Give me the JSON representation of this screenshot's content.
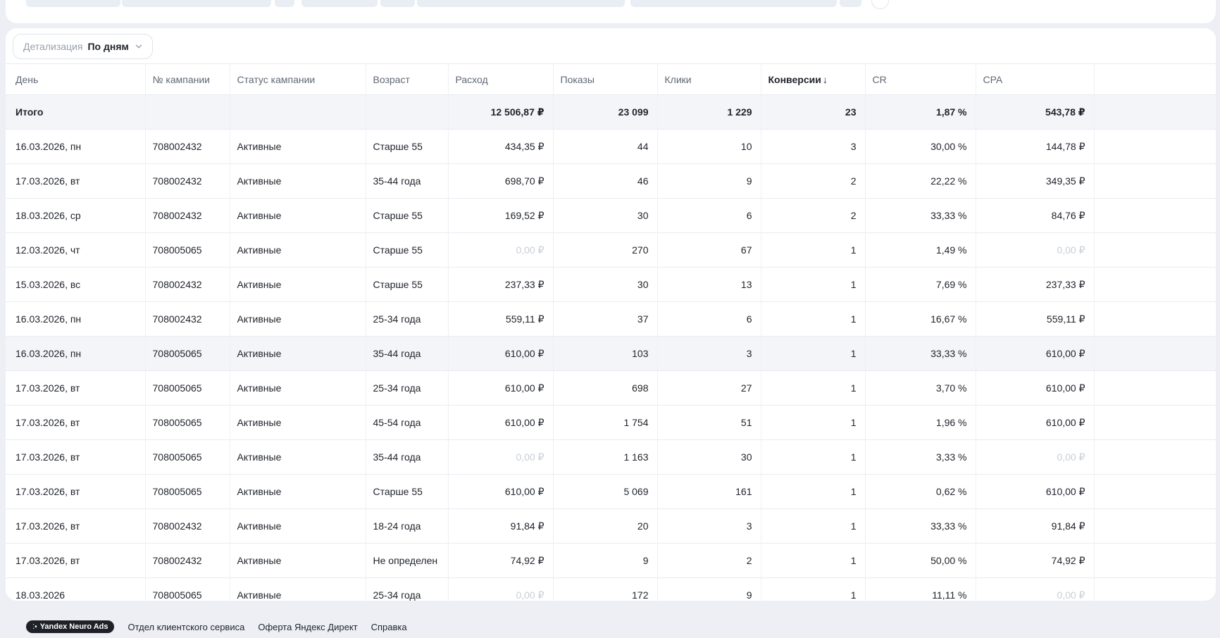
{
  "toolbar": {
    "detail_label": "Детализация",
    "detail_value": "По дням"
  },
  "table": {
    "sort_icon": "↓",
    "columns": [
      {
        "key": "day",
        "label": "День",
        "align": "left"
      },
      {
        "key": "campaign",
        "label": "№ кампании",
        "align": "left"
      },
      {
        "key": "status",
        "label": "Статус кампании",
        "align": "left"
      },
      {
        "key": "age",
        "label": "Возраст",
        "align": "left"
      },
      {
        "key": "spend",
        "label": "Расход",
        "align": "right"
      },
      {
        "key": "impressions",
        "label": "Показы",
        "align": "right"
      },
      {
        "key": "clicks",
        "label": "Клики",
        "align": "right"
      },
      {
        "key": "conversions",
        "label": "Конверсии",
        "align": "right",
        "sorted": true
      },
      {
        "key": "cr",
        "label": "CR",
        "align": "right"
      },
      {
        "key": "cpa",
        "label": "CPA",
        "align": "right"
      }
    ],
    "totals": {
      "day": "Итого",
      "campaign": "",
      "status": "",
      "age": "",
      "spend": "12 506,87 ₽",
      "impressions": "23 099",
      "clicks": "1 229",
      "conversions": "23",
      "cr": "1,87 %",
      "cpa": "543,78 ₽"
    },
    "rows": [
      {
        "day": "16.03.2026, пн",
        "campaign": "708002432",
        "status": "Активные",
        "age": "Старше 55",
        "spend": "434,35 ₽",
        "impressions": "44",
        "clicks": "10",
        "conversions": "3",
        "cr": "30,00 %",
        "cpa": "144,78 ₽"
      },
      {
        "day": "17.03.2026, вт",
        "campaign": "708002432",
        "status": "Активные",
        "age": "35-44 года",
        "spend": "698,70 ₽",
        "impressions": "46",
        "clicks": "9",
        "conversions": "2",
        "cr": "22,22 %",
        "cpa": "349,35 ₽"
      },
      {
        "day": "18.03.2026, ср",
        "campaign": "708002432",
        "status": "Активные",
        "age": "Старше 55",
        "spend": "169,52 ₽",
        "impressions": "30",
        "clicks": "6",
        "conversions": "2",
        "cr": "33,33 %",
        "cpa": "84,76 ₽"
      },
      {
        "day": "12.03.2026, чт",
        "campaign": "708005065",
        "status": "Активные",
        "age": "Старше 55",
        "spend": "0,00 ₽",
        "impressions": "270",
        "clicks": "67",
        "conversions": "1",
        "cr": "1,49 %",
        "cpa": "0,00 ₽",
        "muted": [
          "spend",
          "cpa"
        ]
      },
      {
        "day": "15.03.2026, вс",
        "campaign": "708002432",
        "status": "Активные",
        "age": "Старше 55",
        "spend": "237,33 ₽",
        "impressions": "30",
        "clicks": "13",
        "conversions": "1",
        "cr": "7,69 %",
        "cpa": "237,33 ₽"
      },
      {
        "day": "16.03.2026, пн",
        "campaign": "708002432",
        "status": "Активные",
        "age": "25-34 года",
        "spend": "559,11 ₽",
        "impressions": "37",
        "clicks": "6",
        "conversions": "1",
        "cr": "16,67 %",
        "cpa": "559,11 ₽"
      },
      {
        "day": "16.03.2026, пн",
        "campaign": "708005065",
        "status": "Активные",
        "age": "35-44 года",
        "spend": "610,00 ₽",
        "impressions": "103",
        "clicks": "3",
        "conversions": "1",
        "cr": "33,33 %",
        "cpa": "610,00 ₽",
        "highlighted": true
      },
      {
        "day": "17.03.2026, вт",
        "campaign": "708005065",
        "status": "Активные",
        "age": "25-34 года",
        "spend": "610,00 ₽",
        "impressions": "698",
        "clicks": "27",
        "conversions": "1",
        "cr": "3,70 %",
        "cpa": "610,00 ₽"
      },
      {
        "day": "17.03.2026, вт",
        "campaign": "708005065",
        "status": "Активные",
        "age": "45-54 года",
        "spend": "610,00 ₽",
        "impressions": "1 754",
        "clicks": "51",
        "conversions": "1",
        "cr": "1,96 %",
        "cpa": "610,00 ₽"
      },
      {
        "day": "17.03.2026, вт",
        "campaign": "708005065",
        "status": "Активные",
        "age": "35-44 года",
        "spend": "0,00 ₽",
        "impressions": "1 163",
        "clicks": "30",
        "conversions": "1",
        "cr": "3,33 %",
        "cpa": "0,00 ₽",
        "muted": [
          "spend",
          "cpa"
        ]
      },
      {
        "day": "17.03.2026, вт",
        "campaign": "708005065",
        "status": "Активные",
        "age": "Старше 55",
        "spend": "610,00 ₽",
        "impressions": "5 069",
        "clicks": "161",
        "conversions": "1",
        "cr": "0,62 %",
        "cpa": "610,00 ₽"
      },
      {
        "day": "17.03.2026, вт",
        "campaign": "708002432",
        "status": "Активные",
        "age": "18-24 года",
        "spend": "91,84 ₽",
        "impressions": "20",
        "clicks": "3",
        "conversions": "1",
        "cr": "33,33 %",
        "cpa": "91,84 ₽"
      },
      {
        "day": "17.03.2026, вт",
        "campaign": "708002432",
        "status": "Активные",
        "age": "Не определен",
        "spend": "74,92 ₽",
        "impressions": "9",
        "clicks": "2",
        "conversions": "1",
        "cr": "50,00 %",
        "cpa": "74,92 ₽"
      },
      {
        "day": "18.03.2026",
        "campaign": "708005065",
        "status": "Активные",
        "age": "25-34 года",
        "spend": "0,00 ₽",
        "impressions": "172",
        "clicks": "9",
        "conversions": "1",
        "cr": "11,11 %",
        "cpa": "0,00 ₽",
        "muted": [
          "spend",
          "cpa"
        ]
      }
    ]
  },
  "footer": {
    "badge_icon": "⁚•",
    "badge_label": "Yandex Neuro Ads",
    "links": [
      "Отдел клиентского сервиса",
      "Оферта Яндекс Директ",
      "Справка"
    ]
  },
  "colors": {
    "page_background": "#edeff4",
    "row_highlight": "#f3f5f9",
    "muted_text": "#c8ced6",
    "badge_background": "#1e2127"
  }
}
